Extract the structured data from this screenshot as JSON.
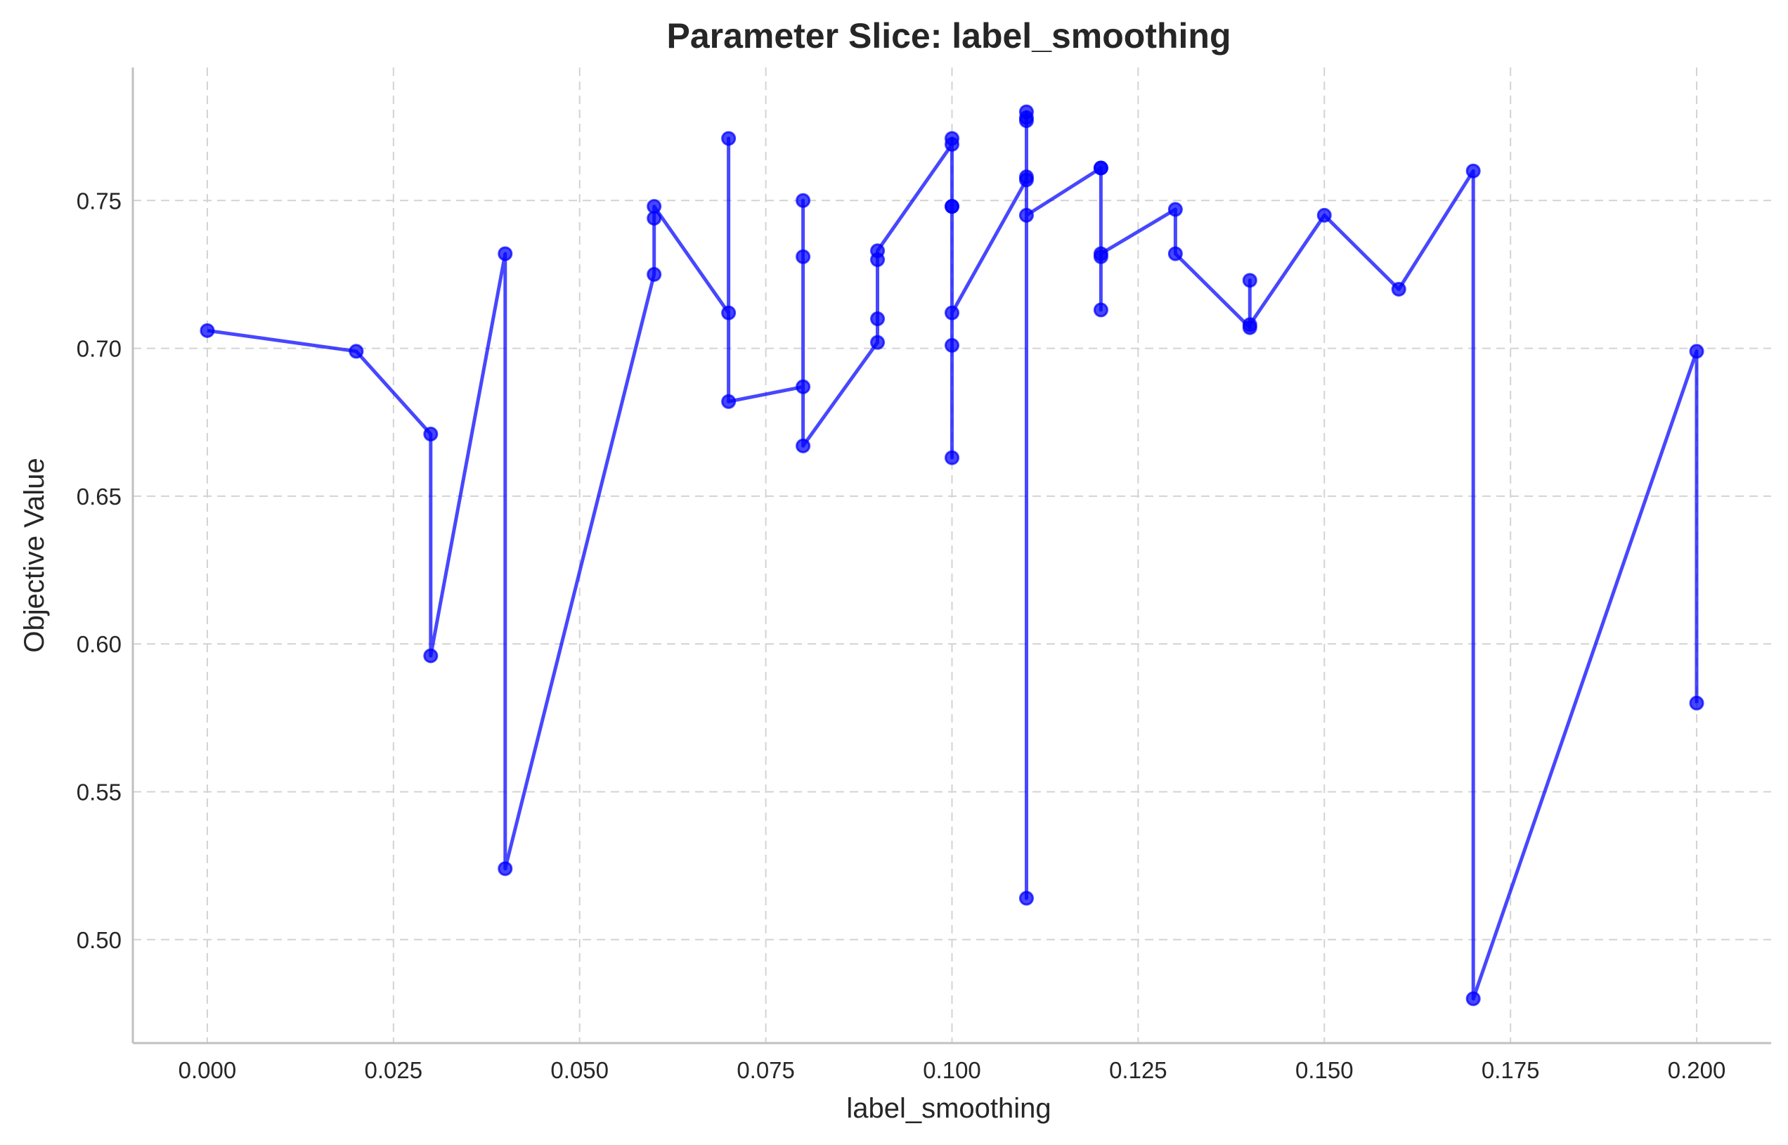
{
  "chart_data": {
    "type": "line",
    "title": "Parameter Slice: label_smoothing",
    "xlabel": "label_smoothing",
    "ylabel": "Objective Value",
    "xlim": [
      -0.01,
      0.21
    ],
    "ylim": [
      0.465,
      0.795
    ],
    "xticks": [
      0.0,
      0.025,
      0.05,
      0.075,
      0.1,
      0.125,
      0.15,
      0.175,
      0.2
    ],
    "xtick_labels": [
      "0.000",
      "0.025",
      "0.050",
      "0.075",
      "0.100",
      "0.125",
      "0.150",
      "0.175",
      "0.200"
    ],
    "yticks": [
      0.5,
      0.55,
      0.6,
      0.65,
      0.7,
      0.75
    ],
    "ytick_labels": [
      "0.50",
      "0.55",
      "0.60",
      "0.65",
      "0.70",
      "0.75"
    ],
    "grid": true,
    "line_color": "#0000ff",
    "series": [
      {
        "points": [
          [
            0.0,
            0.706
          ],
          [
            0.02,
            0.699
          ],
          [
            0.03,
            0.671
          ],
          [
            0.03,
            0.596
          ],
          [
            0.04,
            0.732
          ],
          [
            0.04,
            0.524
          ],
          [
            0.06,
            0.725
          ],
          [
            0.06,
            0.744
          ],
          [
            0.06,
            0.748
          ],
          [
            0.07,
            0.712
          ],
          [
            0.07,
            0.771
          ],
          [
            0.07,
            0.682
          ],
          [
            0.08,
            0.687
          ],
          [
            0.08,
            0.731
          ],
          [
            0.08,
            0.75
          ],
          [
            0.08,
            0.667
          ],
          [
            0.09,
            0.702
          ],
          [
            0.09,
            0.71
          ],
          [
            0.09,
            0.73
          ],
          [
            0.09,
            0.733
          ],
          [
            0.1,
            0.769
          ],
          [
            0.1,
            0.771
          ],
          [
            0.1,
            0.748
          ],
          [
            0.1,
            0.748
          ],
          [
            0.1,
            0.663
          ],
          [
            0.1,
            0.701
          ],
          [
            0.1,
            0.712
          ],
          [
            0.11,
            0.757
          ],
          [
            0.11,
            0.758
          ],
          [
            0.11,
            0.778
          ],
          [
            0.11,
            0.78
          ],
          [
            0.11,
            0.777
          ],
          [
            0.11,
            0.514
          ],
          [
            0.11,
            0.745
          ],
          [
            0.12,
            0.761
          ],
          [
            0.12,
            0.761
          ],
          [
            0.12,
            0.713
          ],
          [
            0.12,
            0.731
          ],
          [
            0.12,
            0.732
          ],
          [
            0.13,
            0.747
          ],
          [
            0.13,
            0.732
          ],
          [
            0.14,
            0.707
          ],
          [
            0.14,
            0.723
          ],
          [
            0.14,
            0.708
          ],
          [
            0.15,
            0.745
          ],
          [
            0.16,
            0.72
          ],
          [
            0.17,
            0.76
          ],
          [
            0.17,
            0.48
          ],
          [
            0.2,
            0.699
          ],
          [
            0.2,
            0.58
          ]
        ]
      }
    ]
  }
}
